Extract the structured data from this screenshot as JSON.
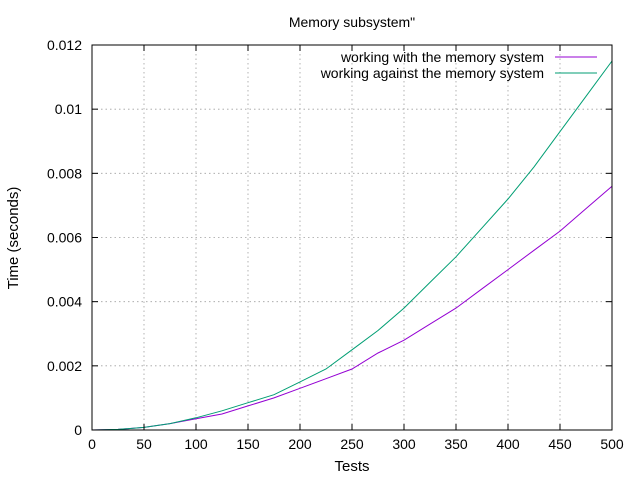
{
  "chart_data": {
    "type": "line",
    "title": "Memory subsystem\"",
    "xlabel": "Tests",
    "ylabel": "Time (seconds)",
    "xlim": [
      0,
      500
    ],
    "ylim": [
      0,
      0.012
    ],
    "x_ticks": [
      "0",
      "50",
      "100",
      "150",
      "200",
      "250",
      "300",
      "350",
      "400",
      "450",
      "500"
    ],
    "y_ticks": [
      "0",
      "0.002",
      "0.004",
      "0.006",
      "0.008",
      "0.01",
      "0.012"
    ],
    "grid": true,
    "legend_position": "top-right",
    "series": [
      {
        "name": "working with the memory system",
        "color": "#9400d3",
        "x": [
          0,
          25,
          50,
          75,
          100,
          125,
          150,
          175,
          200,
          225,
          250,
          275,
          300,
          325,
          350,
          375,
          400,
          425,
          450,
          475,
          500
        ],
        "y": [
          0,
          2e-05,
          8e-05,
          0.0002,
          0.00035,
          0.0005,
          0.00075,
          0.001,
          0.0013,
          0.0016,
          0.0019,
          0.0024,
          0.0028,
          0.0033,
          0.0038,
          0.0044,
          0.005,
          0.0056,
          0.0062,
          0.0069,
          0.0076
        ]
      },
      {
        "name": "working against the memory system",
        "color": "#009e73",
        "x": [
          0,
          25,
          50,
          75,
          100,
          125,
          150,
          175,
          200,
          225,
          250,
          275,
          300,
          325,
          350,
          375,
          400,
          425,
          450,
          475,
          500
        ],
        "y": [
          0,
          2e-05,
          8e-05,
          0.0002,
          0.00038,
          0.0006,
          0.00085,
          0.0011,
          0.0015,
          0.0019,
          0.0025,
          0.0031,
          0.0038,
          0.0046,
          0.0054,
          0.0063,
          0.0072,
          0.0082,
          0.0093,
          0.0104,
          0.0115
        ]
      }
    ]
  }
}
